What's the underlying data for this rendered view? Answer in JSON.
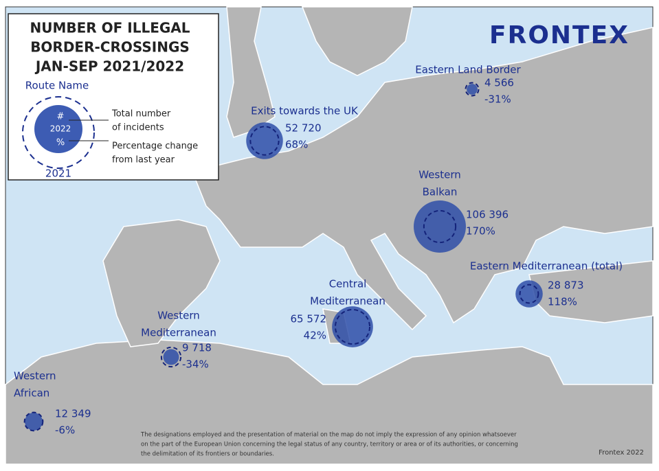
{
  "legend": {
    "title": [
      "NUMBER OF ILLEGAL",
      "BORDER-CROSSINGS",
      "JAN-SEP 2021/2022"
    ],
    "route_name": "Route Name",
    "hash": "#",
    "year_new": "2022",
    "percent": "%",
    "total": [
      "Total number",
      "of incidents"
    ],
    "change": [
      "Percentage change",
      "from last year"
    ],
    "year_old": "2021"
  },
  "logo": "FRONTEX",
  "routes": [
    {
      "name": [
        "Exits towards the UK"
      ],
      "total": 52720,
      "total_label": "52 720",
      "change": 68,
      "change_label": "68%"
    },
    {
      "name": [
        "Eastern Land Border"
      ],
      "total": 4566,
      "total_label": "4 566",
      "change": -31,
      "change_label": "-31%"
    },
    {
      "name": [
        "Western",
        "Balkan"
      ],
      "total": 106396,
      "total_label": "106 396",
      "change": 170,
      "change_label": "170%"
    },
    {
      "name": [
        "Eastern Mediterranean (total)"
      ],
      "total": 28873,
      "total_label": "28 873",
      "change": 118,
      "change_label": "118%"
    },
    {
      "name": [
        "Central",
        "Mediterranean"
      ],
      "total": 65572,
      "total_label": "65 572",
      "change": 42,
      "change_label": "42%"
    },
    {
      "name": [
        "Western",
        "Mediterranean"
      ],
      "total": 9718,
      "total_label": "9 718",
      "change": -34,
      "change_label": "-34%"
    },
    {
      "name": [
        "Western",
        "African"
      ],
      "total": 12349,
      "total_label": "12 349",
      "change": -6,
      "change_label": "-6%"
    }
  ],
  "disclaimer": [
    "The designations employed and the presentation of material on the map do not imply the expression of any opinion whatsoever",
    "on the part of the European Union concerning the legal status of any country, territory or area or of its authorities, or concerning",
    "the delimitation of its frontiers or boundaries."
  ],
  "credit": "Frontex 2022"
}
